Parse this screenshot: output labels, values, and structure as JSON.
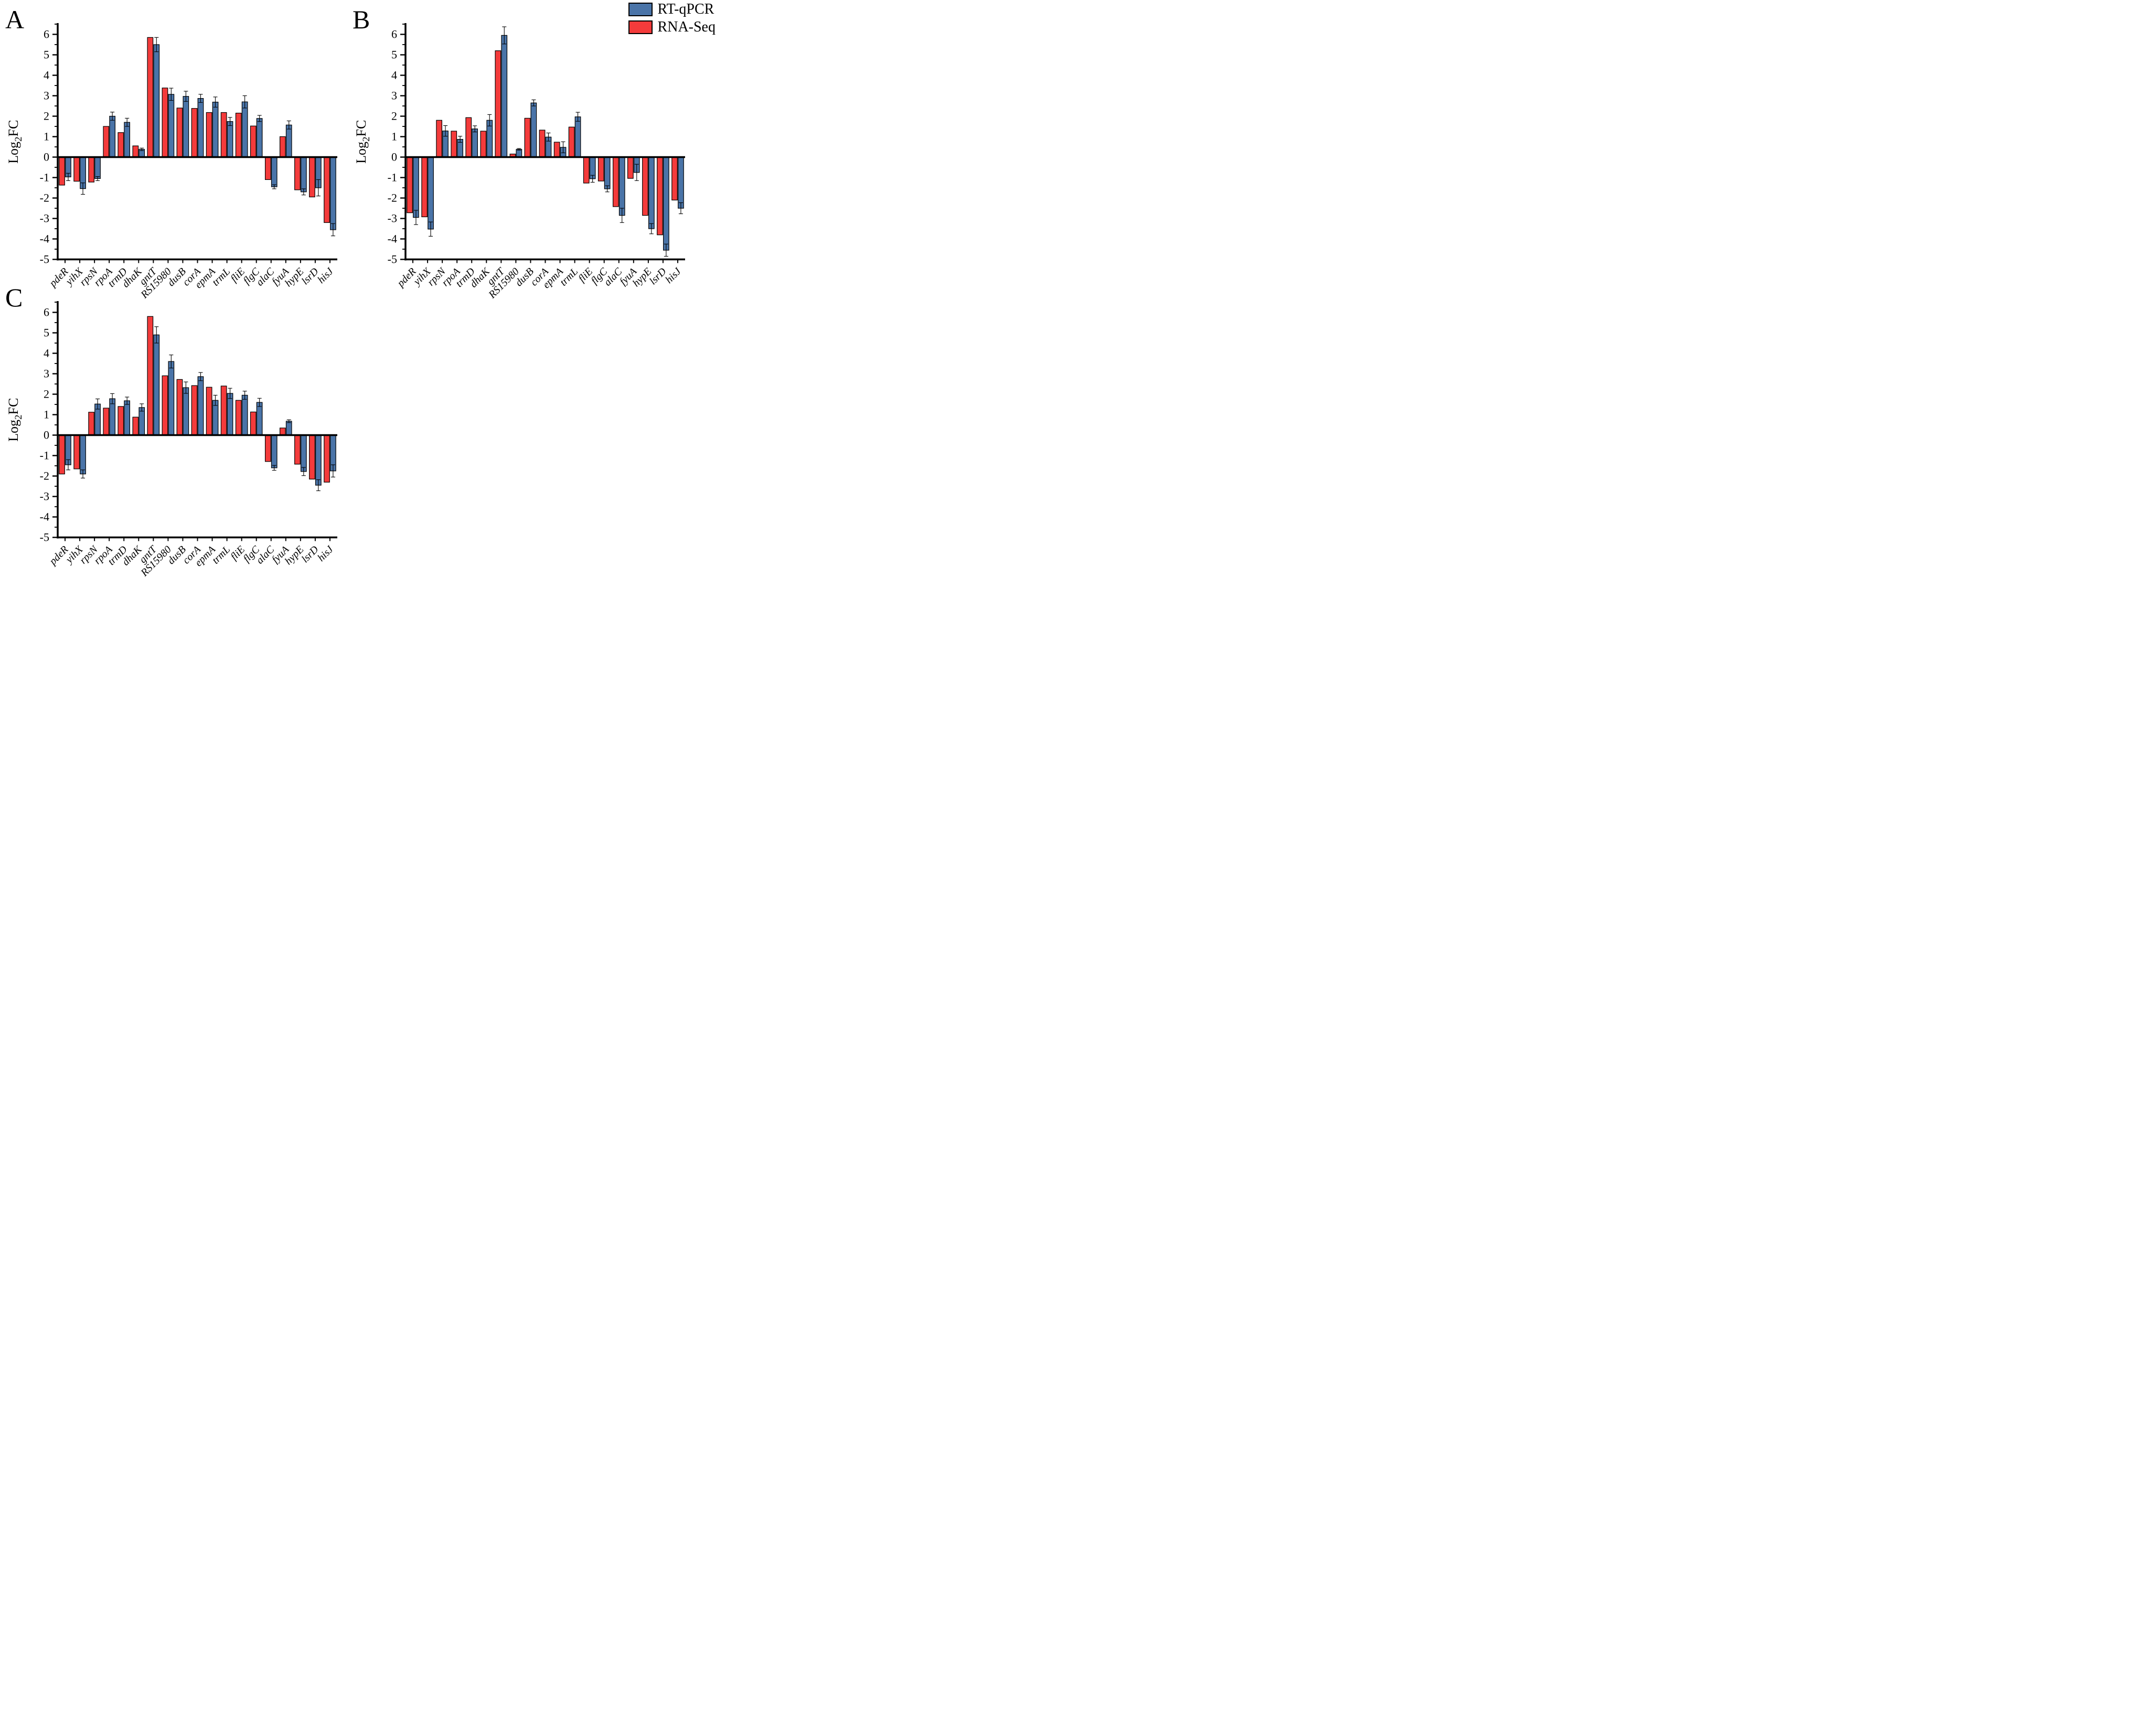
{
  "figure": {
    "background": "#ffffff",
    "ylabel": {
      "pre": "Log",
      "sub": "2",
      "post": "FC"
    },
    "legend": {
      "position": "top-right",
      "items": [
        {
          "label": "RT-qPCR",
          "color": "#4a74a8"
        },
        {
          "label": "RNA-Seq",
          "color": "#f43b3b"
        }
      ]
    }
  },
  "chart_data": [
    {
      "panel": "A",
      "type": "bar",
      "ylabel": "Log2FC",
      "ylim": [
        -5,
        6.5
      ],
      "yticks": [
        -5,
        -4,
        -3,
        -2,
        -1,
        0,
        1,
        2,
        3,
        4,
        5,
        6
      ],
      "grid": false,
      "legend_position": "figure-top-right",
      "categories": [
        "pdeR",
        "yihX",
        "rpsN",
        "rpoA",
        "trmD",
        "dhaK",
        "gntT",
        "RS15980",
        "dusB",
        "corA",
        "epmA",
        "trmL",
        "fliE",
        "flgC",
        "alaC",
        "fyuA",
        "hypE",
        "lsrD",
        "hisJ"
      ],
      "series": [
        {
          "name": "RNA-Seq",
          "color": "#f43b3b",
          "values": [
            -1.37,
            -1.18,
            -1.22,
            1.5,
            1.2,
            0.55,
            5.85,
            3.38,
            2.4,
            2.38,
            2.18,
            2.18,
            2.15,
            1.52,
            -1.1,
            1.0,
            -1.6,
            -1.95,
            -3.2
          ]
        },
        {
          "name": "RT-qPCR",
          "color": "#4a74a8",
          "values": [
            -0.97,
            -1.54,
            -1.05,
            2.0,
            1.7,
            0.38,
            5.5,
            3.07,
            2.97,
            2.87,
            2.69,
            1.74,
            2.7,
            1.89,
            -1.45,
            1.57,
            -1.7,
            -1.5,
            -3.55
          ],
          "errors": [
            0.18,
            0.28,
            0.1,
            0.2,
            0.2,
            0.06,
            0.35,
            0.3,
            0.25,
            0.2,
            0.25,
            0.2,
            0.3,
            0.15,
            0.1,
            0.2,
            0.15,
            0.4,
            0.3
          ]
        }
      ]
    },
    {
      "panel": "B",
      "type": "bar",
      "ylabel": "Log2FC",
      "ylim": [
        -5,
        6.5
      ],
      "yticks": [
        -5,
        -4,
        -3,
        -2,
        -1,
        0,
        1,
        2,
        3,
        4,
        5,
        6
      ],
      "grid": false,
      "legend_position": "figure-top-right",
      "categories": [
        "pdeR",
        "yihX",
        "rpsN",
        "rpoA",
        "trmD",
        "dhaK",
        "gntT",
        "RS15980",
        "dusB",
        "corA",
        "epmA",
        "trmL",
        "fliE",
        "flgC",
        "alaC",
        "fyuA",
        "hypE",
        "lsrD",
        "hisJ"
      ],
      "series": [
        {
          "name": "RNA-Seq",
          "color": "#f43b3b",
          "values": [
            -2.72,
            -2.92,
            1.8,
            1.27,
            1.93,
            1.27,
            5.2,
            0.15,
            1.9,
            1.32,
            0.73,
            1.47,
            -1.27,
            -1.17,
            -2.42,
            -1.04,
            -2.85,
            -3.8,
            -2.1
          ]
        },
        {
          "name": "RT-qPCR",
          "color": "#4a74a8",
          "values": [
            -2.95,
            -3.52,
            1.28,
            0.87,
            1.38,
            1.8,
            5.95,
            0.38,
            2.65,
            0.98,
            0.48,
            1.97,
            -1.06,
            -1.55,
            -2.85,
            -0.75,
            -3.5,
            -4.55,
            -2.5
          ],
          "errors": [
            0.35,
            0.35,
            0.26,
            0.15,
            0.15,
            0.28,
            0.42,
            0.04,
            0.15,
            0.2,
            0.27,
            0.22,
            0.17,
            0.15,
            0.35,
            0.4,
            0.25,
            0.3,
            0.27
          ]
        }
      ]
    },
    {
      "panel": "C",
      "type": "bar",
      "ylabel": "Log2FC",
      "ylim": [
        -5,
        6.5
      ],
      "yticks": [
        -5,
        -4,
        -3,
        -2,
        -1,
        0,
        1,
        2,
        3,
        4,
        5,
        6
      ],
      "grid": false,
      "legend_position": "figure-top-right",
      "categories": [
        "pdeR",
        "yihX",
        "rpsN",
        "rpoA",
        "trmD",
        "dhaK",
        "gntT",
        "RS15980",
        "dusB",
        "corA",
        "epmA",
        "trmL",
        "fliE",
        "flgC",
        "alaC",
        "fyuA",
        "hypE",
        "lsrD",
        "hisJ"
      ],
      "series": [
        {
          "name": "RNA-Seq",
          "color": "#f43b3b",
          "values": [
            -1.9,
            -1.65,
            1.12,
            1.32,
            1.4,
            0.88,
            5.8,
            2.9,
            2.72,
            2.42,
            2.34,
            2.4,
            1.7,
            1.13,
            -1.29,
            0.35,
            -1.42,
            -2.15,
            -2.3
          ]
        },
        {
          "name": "RT-qPCR",
          "color": "#4a74a8",
          "values": [
            -1.45,
            -1.9,
            1.52,
            1.78,
            1.68,
            1.35,
            4.9,
            3.6,
            2.32,
            2.86,
            1.7,
            2.04,
            1.95,
            1.6,
            -1.6,
            0.68,
            -1.78,
            -2.45,
            -1.75
          ],
          "errors": [
            0.25,
            0.2,
            0.25,
            0.25,
            0.18,
            0.18,
            0.4,
            0.32,
            0.28,
            0.2,
            0.25,
            0.25,
            0.2,
            0.2,
            0.12,
            0.07,
            0.2,
            0.27,
            0.3
          ]
        }
      ]
    }
  ]
}
